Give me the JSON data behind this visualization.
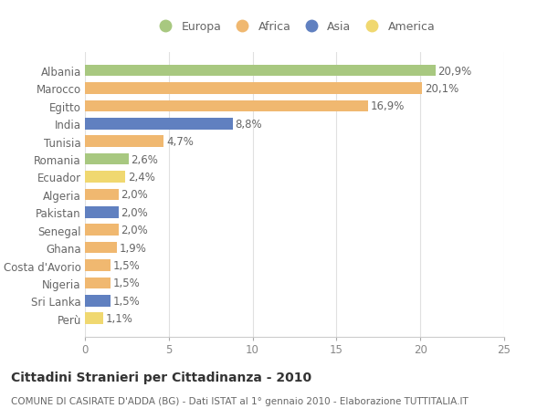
{
  "categories": [
    "Albania",
    "Marocco",
    "Egitto",
    "India",
    "Tunisia",
    "Romania",
    "Ecuador",
    "Algeria",
    "Pakistan",
    "Senegal",
    "Ghana",
    "Costa d'Avorio",
    "Nigeria",
    "Sri Lanka",
    "Perù"
  ],
  "values": [
    20.9,
    20.1,
    16.9,
    8.8,
    4.7,
    2.6,
    2.4,
    2.0,
    2.0,
    2.0,
    1.9,
    1.5,
    1.5,
    1.5,
    1.1
  ],
  "labels": [
    "20,9%",
    "20,1%",
    "16,9%",
    "8,8%",
    "4,7%",
    "2,6%",
    "2,4%",
    "2,0%",
    "2,0%",
    "2,0%",
    "1,9%",
    "1,5%",
    "1,5%",
    "1,5%",
    "1,1%"
  ],
  "colors": [
    "#a8c880",
    "#f0b870",
    "#f0b870",
    "#6080c0",
    "#f0b870",
    "#a8c880",
    "#f0d870",
    "#f0b870",
    "#6080c0",
    "#f0b870",
    "#f0b870",
    "#f0b870",
    "#f0b870",
    "#6080c0",
    "#f0d870"
  ],
  "legend_labels": [
    "Europa",
    "Africa",
    "Asia",
    "America"
  ],
  "legend_colors": [
    "#a8c880",
    "#f0b870",
    "#6080c0",
    "#f0d870"
  ],
  "xlim": [
    0,
    25
  ],
  "xticks": [
    0,
    5,
    10,
    15,
    20,
    25
  ],
  "title": "Cittadini Stranieri per Cittadinanza - 2010",
  "subtitle": "COMUNE DI CASIRATE D'ADDA (BG) - Dati ISTAT al 1° gennaio 2010 - Elaborazione TUTTITALIA.IT",
  "bg_color": "#ffffff",
  "grid_color": "#e0e0e0",
  "bar_height": 0.65,
  "label_fontsize": 8.5,
  "tick_fontsize": 8.5,
  "title_fontsize": 10,
  "subtitle_fontsize": 7.5
}
